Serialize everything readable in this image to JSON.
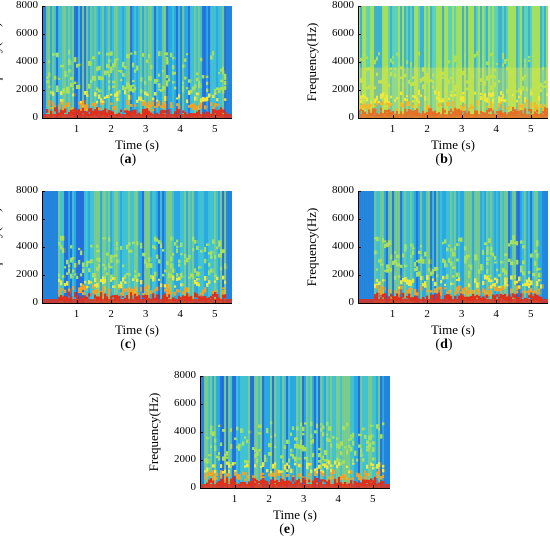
{
  "chart_data": [
    {
      "panel": "a",
      "type": "heatmap",
      "caption_open": "(",
      "caption_letter": "a",
      "caption_close": ")",
      "xlabel": "Time (s)",
      "ylabel": "Frequency(Hz)",
      "yticks": [
        "0",
        "2000",
        "4000",
        "6000",
        "8000"
      ],
      "xticks": [
        "1",
        "2",
        "3",
        "4",
        "5"
      ],
      "xlim": [
        0,
        5.5
      ],
      "ylim": [
        0,
        8000
      ],
      "background": "#2aa8e4",
      "noise_level": 0.25,
      "speech_pauses": [
        [
          0.0,
          0.12
        ],
        [
          4.0,
          4.05
        ],
        [
          5.3,
          5.5
        ]
      ]
    },
    {
      "panel": "b",
      "type": "heatmap",
      "caption_open": "(",
      "caption_letter": "b",
      "caption_close": ")",
      "xlabel": "Time (s)",
      "ylabel": "Frequency(Hz)",
      "yticks": [
        "0",
        "2000",
        "4000",
        "6000",
        "8000"
      ],
      "xticks": [
        "1",
        "2",
        "3",
        "4",
        "5"
      ],
      "xlim": [
        0,
        5.5
      ],
      "ylim": [
        0,
        8000
      ],
      "background": "#8ed870",
      "noise_level": 0.65,
      "speech_pauses": []
    },
    {
      "panel": "c",
      "type": "heatmap",
      "caption_open": "(",
      "caption_letter": "c",
      "caption_close": ")",
      "xlabel": "Time (s)",
      "ylabel": "Frequency(Hz)",
      "yticks": [
        "0",
        "2000",
        "4000",
        "6000",
        "8000"
      ],
      "xticks": [
        "1",
        "2",
        "3",
        "4",
        "5"
      ],
      "xlim": [
        0,
        5.5
      ],
      "ylim": [
        0,
        8000
      ],
      "background": "#2aa8e4",
      "noise_level": 0.3,
      "speech_pauses": [
        [
          0.0,
          0.45
        ],
        [
          5.3,
          5.5
        ]
      ]
    },
    {
      "panel": "d",
      "type": "heatmap",
      "caption_open": "(",
      "caption_letter": "d",
      "caption_close": ")",
      "xlabel": "Time (s)",
      "ylabel": "Frequency(Hz)",
      "yticks": [
        "0",
        "2000",
        "4000",
        "6000",
        "8000"
      ],
      "xticks": [
        "1",
        "2",
        "3",
        "4",
        "5"
      ],
      "xlim": [
        0,
        5.5
      ],
      "ylim": [
        0,
        8000
      ],
      "background": "#2aa8e4",
      "noise_level": 0.2,
      "speech_pauses": [
        [
          0.0,
          0.45
        ],
        [
          5.3,
          5.5
        ]
      ]
    },
    {
      "panel": "e",
      "type": "heatmap",
      "caption_open": "(",
      "caption_letter": "e",
      "caption_close": ")",
      "xlabel": "Time (s)",
      "ylabel": "Frequency(Hz)",
      "yticks": [
        "0",
        "2000",
        "4000",
        "6000",
        "8000"
      ],
      "xticks": [
        "1",
        "2",
        "3",
        "4",
        "5"
      ],
      "xlim": [
        0,
        5.5
      ],
      "ylim": [
        0,
        8000
      ],
      "background": "#2aa8e4",
      "noise_level": 0.3,
      "speech_pauses": [
        [
          0.0,
          0.12
        ],
        [
          5.3,
          5.5
        ]
      ]
    }
  ],
  "colormap": [
    "#1f4fd8",
    "#2aa8e4",
    "#4fd0c8",
    "#a8e05a",
    "#f0e83a",
    "#f4a024",
    "#e0301c",
    "#a01010"
  ]
}
